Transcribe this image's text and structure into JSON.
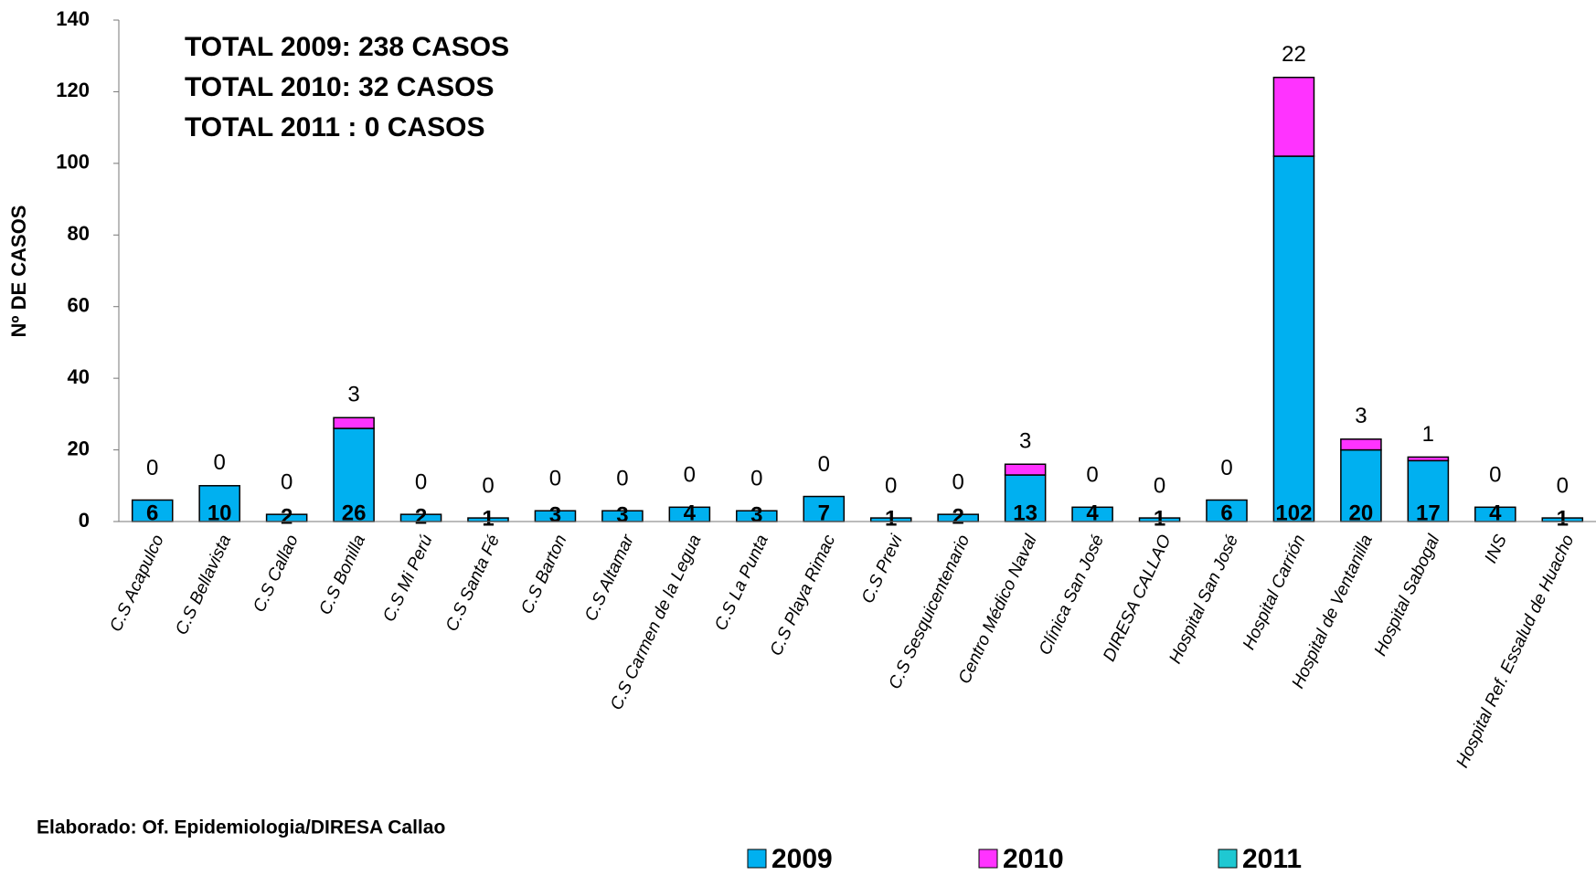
{
  "chart_data": {
    "type": "stacked_bar",
    "y_label": "Nº DE CASOS",
    "annotations": [
      "TOTAL 2009: 238 CASOS",
      "TOTAL 2010: 32 CASOS",
      "TOTAL 2011 : 0 CASOS"
    ],
    "source": "Elaborado: Of. Epidemiologia/DIRESA Callao",
    "categories": [
      "C.S Acapulco",
      "C.S Bellavista",
      "C.S Callao",
      "C.S Bonilla",
      "C.S Mi Perú",
      "C.S Santa Fé",
      "C.S Barton",
      "C.S Altamar",
      "C.S Carmen de la Legua",
      "C.S La Punta",
      "C.S Playa Rimac",
      "C.S Previ",
      "C.S Sesquicentenario",
      "Centro Médico Naval",
      "Clínica San José",
      "DIRESA CALLAO",
      "Hospital San José",
      "Hospital Carrión",
      "Hospital de Ventanilla",
      "Hospital Sabogal",
      "INS",
      "Hospital Ref. Essalud de Huacho"
    ],
    "series": [
      {
        "name": "2009",
        "color": "#00b0f0",
        "values": [
          6,
          10,
          2,
          26,
          2,
          1,
          3,
          3,
          4,
          3,
          7,
          1,
          2,
          13,
          4,
          1,
          6,
          102,
          20,
          17,
          4,
          1
        ]
      },
      {
        "name": "2010",
        "color": "#ff33ff",
        "values": [
          0,
          0,
          0,
          3,
          0,
          0,
          0,
          0,
          0,
          0,
          0,
          0,
          0,
          3,
          0,
          0,
          0,
          22,
          3,
          1,
          0,
          0
        ]
      },
      {
        "name": "2011",
        "color": "#1fc8d2",
        "values": [
          0,
          0,
          0,
          0,
          0,
          0,
          0,
          0,
          0,
          0,
          0,
          0,
          0,
          0,
          0,
          0,
          0,
          0,
          0,
          0,
          0,
          0
        ]
      }
    ],
    "ylim": [
      0,
      140
    ],
    "yticks": [
      0,
      20,
      40,
      60,
      80,
      100,
      120,
      140
    ],
    "grid": false,
    "legend": "bottom"
  }
}
